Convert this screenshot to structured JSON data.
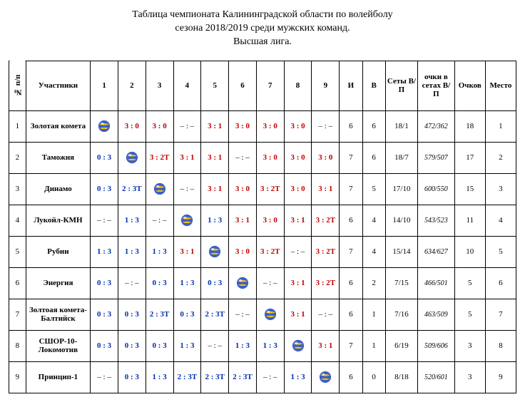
{
  "title_lines": [
    "Таблица чемпионата Калининградской области по волейболу",
    "сезона 2018/2019 среди мужских команд.",
    "Высшая лига."
  ],
  "columns": {
    "idx": "№ п/п",
    "team": "Участники",
    "rounds": [
      "1",
      "2",
      "3",
      "4",
      "5",
      "6",
      "7",
      "8",
      "9"
    ],
    "I": "И",
    "B": "В",
    "sets": "Сеты В/П",
    "pts_sets": "очки в сетах В/П",
    "ochkov": "Очков",
    "place": "Место"
  },
  "ball_svg": {
    "bg": "#3a5fcd",
    "stripe": "#f6c400",
    "shine": "#ffffff"
  },
  "colors": {
    "red": "#c00000",
    "blue": "#0030b0"
  },
  "rows": [
    {
      "n": "1",
      "team": "Золотая комета",
      "cells": [
        "SELF",
        "3 : 0|r",
        "3 : 0|r",
        "– : –|d",
        "3 : 1|r",
        "3 : 0|r",
        "3 : 0|r",
        "3 : 0|r",
        "– : –|d"
      ],
      "I": "6",
      "B": "6",
      "sets": "18/1",
      "pts": "472/362",
      "ochkov": "18",
      "place": "1"
    },
    {
      "n": "2",
      "team": "Таможня",
      "cells": [
        "0 : 3|b",
        "SELF",
        "3 : 2Т|r",
        "3 : 1|r",
        "3 : 1|r",
        "– : –|d",
        "3 : 0|r",
        "3 : 0|r",
        "3 : 0|r"
      ],
      "I": "7",
      "B": "6",
      "sets": "18/7",
      "pts": "579/507",
      "ochkov": "17",
      "place": "2"
    },
    {
      "n": "3",
      "team": "Динамо",
      "cells": [
        "0 : 3|b",
        "2 : 3Т|b",
        "SELF",
        "– : –|d",
        "3 : 1|r",
        "3 : 0|r",
        "3 : 2Т|r",
        "3 : 0|r",
        "3 : 1|r"
      ],
      "I": "7",
      "B": "5",
      "sets": "17/10",
      "pts": "600/550",
      "ochkov": "15",
      "place": "3"
    },
    {
      "n": "4",
      "team": "Лукойл-КМН",
      "cells": [
        "– : –|d",
        "1 : 3|b",
        "– : –|d",
        "SELF",
        "1 : 3|b",
        "3 : 1|r",
        "3 : 0|r",
        "3 : 1|r",
        "3 : 2Т|r"
      ],
      "I": "6",
      "B": "4",
      "sets": "14/10",
      "pts": "543/523",
      "ochkov": "11",
      "place": "4"
    },
    {
      "n": "5",
      "team": "Рубин",
      "cells": [
        "1 : 3|b",
        "1 : 3|b",
        "1 : 3|b",
        "3 : 1|r",
        "SELF",
        "3 : 0|r",
        "3 : 2Т|r",
        "– : –|d",
        "3 : 2Т|r"
      ],
      "I": "7",
      "B": "4",
      "sets": "15/14",
      "pts": "634/627",
      "ochkov": "10",
      "place": "5"
    },
    {
      "n": "6",
      "team": "Энергия",
      "cells": [
        "0 : 3|b",
        "– : –|d",
        "0 : 3|b",
        "1 : 3|b",
        "0 : 3|b",
        "SELF",
        "– : –|d",
        "3 : 1|r",
        "3 : 2Т|r"
      ],
      "I": "6",
      "B": "2",
      "sets": "7/15",
      "pts": "466/501",
      "ochkov": "5",
      "place": "6"
    },
    {
      "n": "7",
      "team": "Золтоая комета-Балтийск",
      "cells": [
        "0 : 3|b",
        "0 : 3|b",
        "2 : 3Т|b",
        "0 : 3|b",
        "2 : 3Т|b",
        "– : –|d",
        "SELF",
        "3 : 1|r",
        "– : –|d"
      ],
      "I": "6",
      "B": "1",
      "sets": "7/16",
      "pts": "463/509",
      "ochkov": "5",
      "place": "7"
    },
    {
      "n": "8",
      "team": "СШОР-10-Локомотив",
      "cells": [
        "0 : 3|b",
        "0 : 3|b",
        "0 : 3|b",
        "1 : 3|b",
        "– : –|d",
        "1 : 3|b",
        "1 : 3|b",
        "SELF",
        "3 : 1|r"
      ],
      "I": "7",
      "B": "1",
      "sets": "6/19",
      "pts": "509/606",
      "ochkov": "3",
      "place": "8"
    },
    {
      "n": "9",
      "team": "Принцип-1",
      "cells": [
        "– : –|d",
        "0 : 3|b",
        "1 : 3|b",
        "2 : 3Т|b",
        "2 : 3Т|b",
        "2 : 3Т|b",
        "– : –|d",
        "1 : 3|b",
        "SELF"
      ],
      "I": "6",
      "B": "0",
      "sets": "8/18",
      "pts": "520/601",
      "ochkov": "3",
      "place": "9"
    }
  ]
}
